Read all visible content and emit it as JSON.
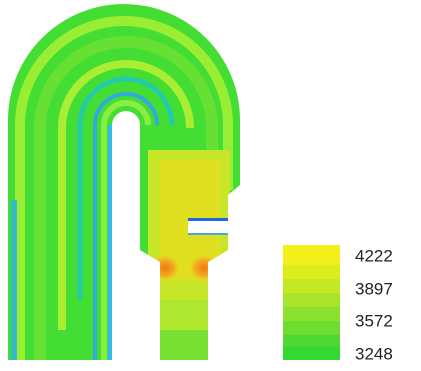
{
  "colorbar": {
    "ticks": [
      4222,
      3897,
      3572,
      3248
    ]
  }
}
